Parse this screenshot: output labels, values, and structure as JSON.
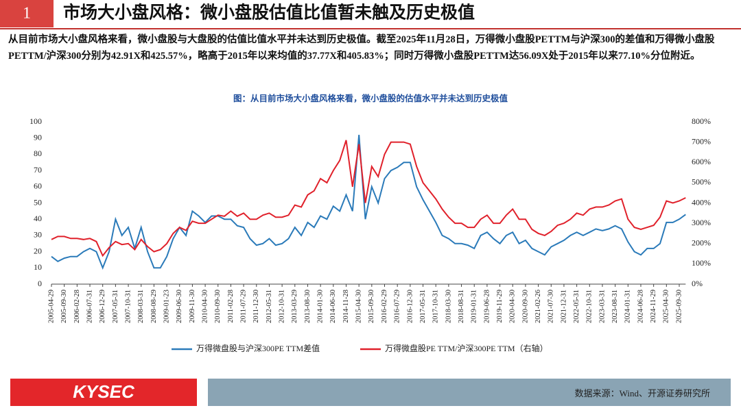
{
  "slide": {
    "number": "1",
    "title": "市场大小盘风格：微小盘股估值比值暂未触及历史极值",
    "summary": "从目前市场大小盘风格来看，微小盘股与大盘股的估值比值水平并未达到历史极值。截至2025年11月28日，万得微小盘股PETTM与沪深300的差值和万得微小盘股PETTM/沪深300分别为42.91X和425.57%，略高于2015年以来均值的37.77X和405.83%；同时万得微小盘股PETTM达56.09X处于2015年以来77.10%分位附近。",
    "logo": "KYSEC",
    "source": "数据来源：Wind、开源证券研究所"
  },
  "chart_data": {
    "type": "line",
    "title": "图：从目前市场大小盘风格来看，微小盘股的估值水平并未达到历史极值",
    "categories": [
      "2005-04-29",
      null,
      "2005-09-30",
      null,
      "2006-02-28",
      null,
      "2006-07-31",
      null,
      "2006-12-29",
      null,
      "2007-05-31",
      null,
      "2007-10-31",
      null,
      "2008-03-31",
      null,
      "2008-08-29",
      null,
      "2009-01-23",
      null,
      "2009-06-30",
      null,
      "2009-11-30",
      null,
      "2010-04-30",
      null,
      "2010-09-30",
      null,
      "2011-02-28",
      null,
      "2011-07-29",
      null,
      "2011-12-30",
      null,
      "2012-05-31",
      null,
      "2012-10-31",
      null,
      "2013-03-29",
      null,
      "2013-08-30",
      null,
      "2014-01-30",
      null,
      "2014-06-30",
      null,
      "2014-11-28",
      null,
      "2015-04-30",
      null,
      "2015-09-30",
      null,
      "2016-02-29",
      null,
      "2016-07-29",
      null,
      "2016-12-30",
      null,
      "2017-05-31",
      null,
      "2017-10-31",
      null,
      "2018-03-30",
      null,
      "2018-08-31",
      null,
      "2019-01-31",
      null,
      "2019-06-28",
      null,
      "2019-11-29",
      null,
      "2020-04-30",
      null,
      "2020-09-30",
      null,
      "2021-02-26",
      null,
      "2021-07-30",
      null,
      "2021-12-31",
      null,
      "2022-05-31",
      null,
      "2022-10-31",
      null,
      "2023-03-31",
      null,
      "2023-08-31",
      null,
      "2024-01-31",
      null,
      "2024-06-28",
      null,
      "2024-11-29",
      null,
      "2025-04-30",
      null,
      "2025-09-30",
      null
    ],
    "series": [
      {
        "name": "万得微盘股与沪深300PE TTM差值",
        "color": "#2a7ab9",
        "values": [
          17,
          14,
          16,
          17,
          17,
          20,
          22,
          20,
          10,
          20,
          40,
          30,
          35,
          22,
          35,
          20,
          10,
          10,
          17,
          28,
          35,
          30,
          45,
          42,
          38,
          42,
          42,
          40,
          40,
          36,
          35,
          28,
          24,
          25,
          28,
          24,
          25,
          28,
          35,
          30,
          38,
          35,
          42,
          40,
          48,
          45,
          55,
          45,
          92,
          40,
          60,
          50,
          65,
          70,
          72,
          75,
          75,
          60,
          52,
          45,
          38,
          30,
          28,
          25,
          25,
          24,
          22,
          30,
          32,
          28,
          25,
          30,
          32,
          25,
          27,
          22,
          20,
          18,
          23,
          25,
          27,
          30,
          32,
          30,
          32,
          34,
          33,
          34,
          36,
          34,
          26,
          20,
          18,
          22,
          22,
          25,
          38,
          38,
          40,
          42.91
        ]
      },
      {
        "name": "万得微盘股PE TTM/沪深300PE  TTM（右轴）",
        "color": "#e0202a",
        "axis": "y2",
        "values": [
          220,
          235,
          235,
          225,
          225,
          220,
          225,
          210,
          140,
          180,
          210,
          195,
          200,
          170,
          220,
          185,
          160,
          170,
          200,
          250,
          280,
          265,
          310,
          300,
          300,
          320,
          340,
          335,
          360,
          335,
          350,
          320,
          320,
          340,
          350,
          330,
          330,
          340,
          390,
          380,
          440,
          460,
          520,
          500,
          560,
          610,
          710,
          480,
          690,
          400,
          580,
          530,
          640,
          700,
          700,
          700,
          690,
          580,
          500,
          460,
          420,
          370,
          330,
          300,
          300,
          280,
          280,
          320,
          340,
          300,
          300,
          340,
          370,
          320,
          320,
          270,
          250,
          240,
          260,
          290,
          300,
          320,
          350,
          340,
          370,
          380,
          380,
          390,
          410,
          420,
          320,
          280,
          270,
          280,
          290,
          330,
          410,
          400,
          410,
          425.57
        ]
      }
    ],
    "ylim": [
      0,
      100
    ],
    "yticks": [
      0,
      10,
      20,
      30,
      40,
      50,
      60,
      70,
      80,
      90,
      100
    ],
    "y2lim": [
      0,
      800
    ],
    "y2ticks": [
      {
        "value": 0,
        "label": "0%"
      },
      {
        "value": 100,
        "label": "100%"
      },
      {
        "value": 200,
        "label": "200%"
      },
      {
        "value": 300,
        "label": "300%"
      },
      {
        "value": 400,
        "label": "400%"
      },
      {
        "value": 500,
        "label": "500%"
      },
      {
        "value": 600,
        "label": "600%"
      },
      {
        "value": 700,
        "label": "700%"
      },
      {
        "value": 800,
        "label": "800%"
      }
    ],
    "grid": false,
    "legend": "bottom"
  }
}
